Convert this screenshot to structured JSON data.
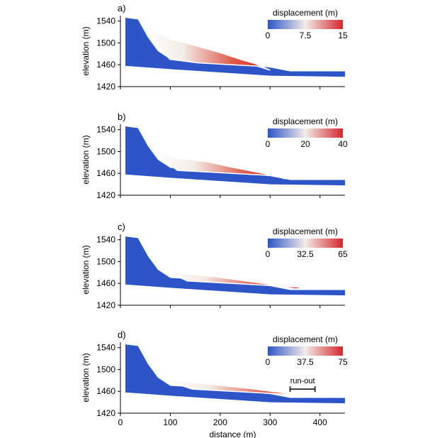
{
  "colors": {
    "low": "#2d55c7",
    "mid": "#f2ece6",
    "high": "#d7262d",
    "axis": "#000000"
  },
  "chart_data": [
    {
      "type": "area",
      "panel": "a)",
      "ylabel": "elevation (m)",
      "xlabel": "",
      "xlim": [
        0,
        450
      ],
      "ylim": [
        1420,
        1550
      ],
      "y_ticks": [
        "1540",
        "1500",
        "1460",
        "1420"
      ],
      "x_ticks": [],
      "colorbar": {
        "title": "displacement (m)",
        "ticks": [
          "0",
          "7.5",
          "15"
        ],
        "min": 0,
        "max": 15
      },
      "max_displacement": 15,
      "slide": {
        "mass_top": [
          [
            52,
            1528
          ],
          [
            95,
            1509
          ],
          [
            150,
            1495
          ],
          [
            200,
            1482
          ],
          [
            240,
            1470
          ],
          [
            270,
            1462
          ]
        ],
        "toe_x": 300
      }
    },
    {
      "type": "area",
      "panel": "b)",
      "ylabel": "elevation (m)",
      "xlabel": "",
      "xlim": [
        0,
        450
      ],
      "ylim": [
        1420,
        1550
      ],
      "y_ticks": [
        "1540",
        "1500",
        "1460",
        "1420"
      ],
      "x_ticks": [],
      "colorbar": {
        "title": "displacement (m)",
        "ticks": [
          "0",
          "20",
          "40"
        ],
        "min": 0,
        "max": 40
      },
      "max_displacement": 40,
      "slide": {
        "mass_top": [
          [
            70,
            1498
          ],
          [
            110,
            1488
          ],
          [
            170,
            1482
          ],
          [
            220,
            1472
          ],
          [
            270,
            1463
          ],
          [
            310,
            1455
          ]
        ],
        "toe_x": 330
      }
    },
    {
      "type": "area",
      "panel": "c)",
      "ylabel": "elevation (m)",
      "xlabel": "",
      "xlim": [
        0,
        450
      ],
      "ylim": [
        1420,
        1550
      ],
      "y_ticks": [
        "1540",
        "1500",
        "1460",
        "1420"
      ],
      "x_ticks": [],
      "colorbar": {
        "title": "displacement (m)",
        "ticks": [
          "0",
          "32.5",
          "65"
        ],
        "min": 0,
        "max": 65
      },
      "max_displacement": 65,
      "slide": {
        "mass_top": [
          [
            80,
            1486
          ],
          [
            130,
            1478
          ],
          [
            190,
            1472
          ],
          [
            240,
            1466
          ],
          [
            300,
            1458
          ],
          [
            350,
            1450
          ]
        ],
        "toe_x": 365
      }
    },
    {
      "type": "area",
      "panel": "d)",
      "ylabel": "elevation (m)",
      "xlabel": "distance (m)",
      "xlim": [
        0,
        450
      ],
      "ylim": [
        1420,
        1550
      ],
      "y_ticks": [
        "1540",
        "1500",
        "1460",
        "1420"
      ],
      "x_ticks": [
        "0",
        "100",
        "200",
        "300",
        "400"
      ],
      "colorbar": {
        "title": "displacement (m)",
        "ticks": [
          "0",
          "37.5",
          "75"
        ],
        "min": 0,
        "max": 75
      },
      "max_displacement": 75,
      "slide": {
        "mass_top": [
          [
            85,
            1484
          ],
          [
            140,
            1477
          ],
          [
            200,
            1471
          ],
          [
            260,
            1465
          ],
          [
            320,
            1458
          ],
          [
            380,
            1450
          ]
        ],
        "toe_x": 390
      },
      "annotation": {
        "text": "run-out",
        "x_start": 340,
        "x_end": 390,
        "y": 1464
      }
    }
  ],
  "terrain": {
    "crest_x": 10,
    "crest_y": 1546,
    "slope_profile": [
      [
        10,
        1546
      ],
      [
        35,
        1543
      ],
      [
        55,
        1510
      ],
      [
        75,
        1485
      ],
      [
        100,
        1470
      ],
      [
        200,
        1465
      ],
      [
        300,
        1455
      ],
      [
        340,
        1448
      ],
      [
        450,
        1448
      ]
    ],
    "base_profile": [
      [
        10,
        1458
      ],
      [
        100,
        1452
      ],
      [
        200,
        1446
      ],
      [
        300,
        1440
      ],
      [
        450,
        1438
      ]
    ]
  }
}
